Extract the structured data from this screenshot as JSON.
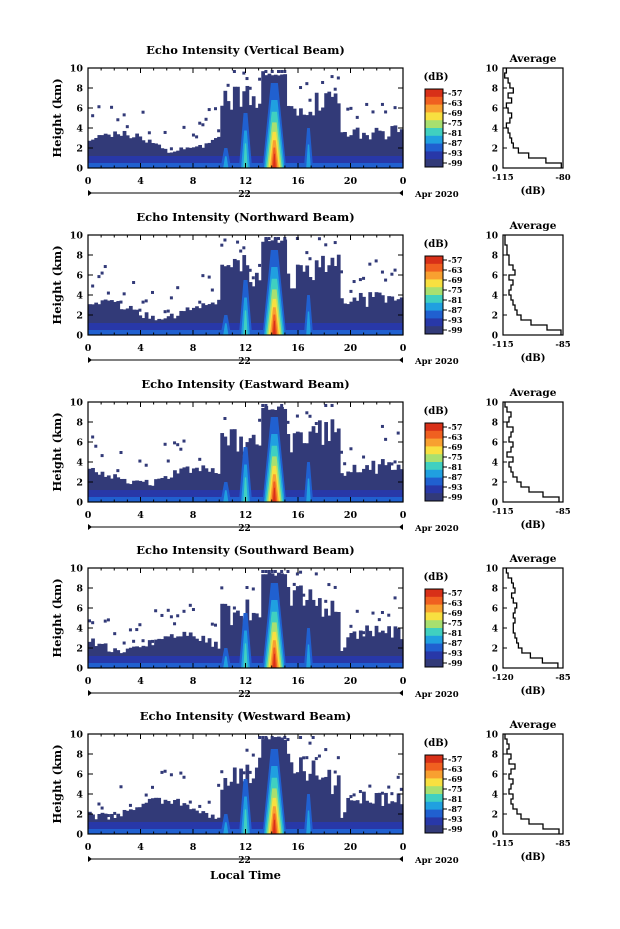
{
  "figure": {
    "xlabel_bottom": "Local Time",
    "date_label": "Apr 2020",
    "day_label": "22"
  },
  "chart_data": [
    {
      "type": "heatmap",
      "title": "Echo Intensity (Vertical Beam)",
      "xlabel": "",
      "ylabel": "Height (km)",
      "xlim": [
        0,
        24
      ],
      "ylim": [
        0,
        10
      ],
      "xticks": [
        "0",
        "4",
        "8",
        "12",
        "16",
        "20",
        "0"
      ],
      "yticks": [
        "0",
        "2",
        "4",
        "6",
        "8",
        "10"
      ],
      "colorbar": {
        "unit": "(dB)",
        "ticks": [
          "-57",
          "-63",
          "-69",
          "-75",
          "-81",
          "-87",
          "-93",
          "-99"
        ],
        "colors": [
          "#d83018",
          "#f06020",
          "#f8a030",
          "#f8e040",
          "#a8e070",
          "#40d0c0",
          "#20a0e0",
          "#2060d0",
          "#2838a8",
          "#323a78"
        ]
      },
      "average_profile": {
        "title": "Average",
        "xlabel": "(dB)",
        "xticks": [
          "-115",
          "-80"
        ],
        "xlim": [
          -115,
          -80
        ],
        "height": [
          0,
          0.5,
          1,
          1.5,
          2,
          2.5,
          3,
          3.5,
          4,
          4.5,
          5,
          5.5,
          6,
          6.5,
          7,
          7.5,
          8,
          8.5,
          9,
          9.5
        ],
        "value": [
          -81,
          -90,
          -100,
          -106,
          -109,
          -110,
          -111,
          -112,
          -113,
          -111,
          -110,
          -112,
          -113,
          -110,
          -112,
          -109,
          -111,
          -112,
          -114,
          -113
        ]
      }
    },
    {
      "type": "heatmap",
      "title": "Echo Intensity (Northward Beam)",
      "xlabel": "",
      "ylabel": "Height (km)",
      "xlim": [
        0,
        24
      ],
      "ylim": [
        0,
        10
      ],
      "xticks": [
        "0",
        "4",
        "8",
        "12",
        "16",
        "20",
        "0"
      ],
      "yticks": [
        "0",
        "2",
        "4",
        "6",
        "8",
        "10"
      ],
      "colorbar": {
        "unit": "(dB)",
        "ticks": [
          "-57",
          "-63",
          "-69",
          "-75",
          "-81",
          "-87",
          "-93",
          "-99"
        ],
        "colors": [
          "#d83018",
          "#f06020",
          "#f8a030",
          "#f8e040",
          "#a8e070",
          "#40d0c0",
          "#20a0e0",
          "#2060d0",
          "#2838a8",
          "#323a78"
        ]
      },
      "average_profile": {
        "title": "Average",
        "xlabel": "(dB)",
        "xticks": [
          "-115",
          "-85"
        ],
        "xlim": [
          -115,
          -85
        ],
        "height": [
          0,
          0.5,
          1,
          1.5,
          2,
          2.5,
          3,
          3.5,
          4,
          4.5,
          5,
          5.5,
          6,
          6.5,
          7,
          7.5,
          8,
          8.5,
          9,
          9.5
        ],
        "value": [
          -86,
          -93,
          -101,
          -106,
          -108,
          -109,
          -110,
          -111,
          -112,
          -111,
          -110,
          -112,
          -109,
          -110,
          -112,
          -112,
          -113,
          -113,
          -114,
          -114
        ]
      }
    },
    {
      "type": "heatmap",
      "title": "Echo Intensity (Eastward Beam)",
      "xlabel": "",
      "ylabel": "Height (km)",
      "xlim": [
        0,
        24
      ],
      "ylim": [
        0,
        10
      ],
      "xticks": [
        "0",
        "4",
        "8",
        "12",
        "16",
        "20",
        "0"
      ],
      "yticks": [
        "0",
        "2",
        "4",
        "6",
        "8",
        "10"
      ],
      "colorbar": {
        "unit": "(dB)",
        "ticks": [
          "-57",
          "-63",
          "-69",
          "-75",
          "-81",
          "-87",
          "-93",
          "-99"
        ],
        "colors": [
          "#d83018",
          "#f06020",
          "#f8a030",
          "#f8e040",
          "#a8e070",
          "#40d0c0",
          "#20a0e0",
          "#2060d0",
          "#2838a8",
          "#323a78"
        ]
      },
      "average_profile": {
        "title": "Average",
        "xlabel": "(dB)",
        "xticks": [
          "-115",
          "-85"
        ],
        "xlim": [
          -115,
          -85
        ],
        "height": [
          0,
          0.5,
          1,
          1.5,
          2,
          2.5,
          3,
          3.5,
          4,
          4.5,
          5,
          5.5,
          6,
          6.5,
          7,
          7.5,
          8,
          8.5,
          9,
          9.5
        ],
        "value": [
          -87,
          -95,
          -102,
          -106,
          -108,
          -110,
          -111,
          -112,
          -110,
          -113,
          -111,
          -110,
          -112,
          -111,
          -110,
          -113,
          -112,
          -111,
          -113,
          -114
        ]
      }
    },
    {
      "type": "heatmap",
      "title": "Echo Intensity (Southward Beam)",
      "xlabel": "",
      "ylabel": "Height (km)",
      "xlim": [
        0,
        24
      ],
      "ylim": [
        0,
        10
      ],
      "xticks": [
        "0",
        "4",
        "8",
        "12",
        "16",
        "20",
        "0"
      ],
      "yticks": [
        "0",
        "2",
        "4",
        "6",
        "8",
        "10"
      ],
      "colorbar": {
        "unit": "(dB)",
        "ticks": [
          "-57",
          "-63",
          "-69",
          "-75",
          "-81",
          "-87",
          "-93",
          "-99"
        ],
        "colors": [
          "#d83018",
          "#f06020",
          "#f8a030",
          "#f8e040",
          "#a8e070",
          "#40d0c0",
          "#20a0e0",
          "#2060d0",
          "#2838a8",
          "#323a78"
        ]
      },
      "average_profile": {
        "title": "Average",
        "xlabel": "(dB)",
        "xticks": [
          "-120",
          "-85"
        ],
        "xlim": [
          -120,
          -85
        ],
        "height": [
          0,
          0.5,
          1,
          1.5,
          2,
          2.5,
          3,
          3.5,
          4,
          4.5,
          5,
          5.5,
          6,
          6.5,
          7,
          7.5,
          8,
          8.5,
          9,
          9.5
        ],
        "value": [
          -88,
          -97,
          -104,
          -109,
          -111,
          -112,
          -113,
          -114,
          -114,
          -113,
          -114,
          -113,
          -112,
          -114,
          -115,
          -113,
          -114,
          -115,
          -117,
          -118
        ]
      }
    },
    {
      "type": "heatmap",
      "title": "Echo Intensity (Westward Beam)",
      "xlabel": "",
      "ylabel": "Height (km)",
      "xlim": [
        0,
        24
      ],
      "ylim": [
        0,
        10
      ],
      "xticks": [
        "0",
        "4",
        "8",
        "12",
        "16",
        "20",
        "0"
      ],
      "yticks": [
        "0",
        "2",
        "4",
        "6",
        "8",
        "10"
      ],
      "colorbar": {
        "unit": "(dB)",
        "ticks": [
          "-57",
          "-63",
          "-69",
          "-75",
          "-81",
          "-87",
          "-93",
          "-99"
        ],
        "colors": [
          "#d83018",
          "#f06020",
          "#f8a030",
          "#f8e040",
          "#a8e070",
          "#40d0c0",
          "#20a0e0",
          "#2060d0",
          "#2838a8",
          "#323a78"
        ]
      },
      "average_profile": {
        "title": "Average",
        "xlabel": "(dB)",
        "xticks": [
          "-115",
          "-85"
        ],
        "xlim": [
          -115,
          -85
        ],
        "height": [
          0,
          0.5,
          1,
          1.5,
          2,
          2.5,
          3,
          3.5,
          4,
          4.5,
          5,
          5.5,
          6,
          6.5,
          7,
          7.5,
          8,
          8.5,
          9,
          9.5
        ],
        "value": [
          -87,
          -95,
          -102,
          -106,
          -108,
          -110,
          -111,
          -110,
          -112,
          -111,
          -110,
          -112,
          -111,
          -109,
          -112,
          -111,
          -113,
          -112,
          -113,
          -114
        ]
      }
    }
  ]
}
